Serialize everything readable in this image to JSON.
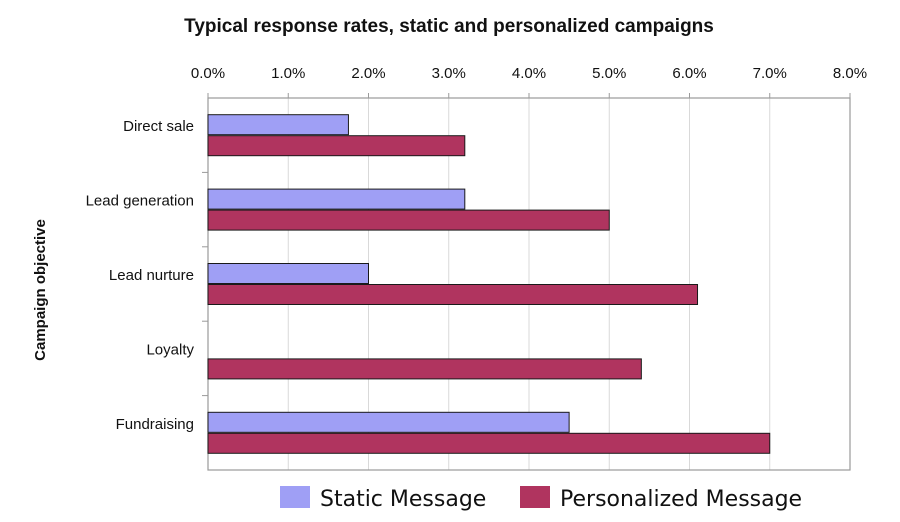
{
  "chart_data": {
    "type": "bar",
    "orientation": "horizontal",
    "title": "Typical response rates, static and personalized campaigns",
    "ylabel": "Campaign objective",
    "xlabel": "",
    "xlim": [
      0,
      8
    ],
    "x_ticks": [
      "0.0%",
      "1.0%",
      "2.0%",
      "3.0%",
      "4.0%",
      "5.0%",
      "6.0%",
      "7.0%",
      "8.0%"
    ],
    "x_axis_position": "top",
    "grid": true,
    "legend_position": "bottom",
    "categories": [
      "Direct sale",
      "Lead generation",
      "Lead nurture",
      "Loyalty",
      "Fundraising"
    ],
    "series": [
      {
        "name": "Static Message",
        "color": "#9f9ff5",
        "values": [
          1.75,
          3.2,
          2.0,
          0,
          4.5
        ]
      },
      {
        "name": "Personalized Message",
        "color": "#b0345f",
        "values": [
          3.2,
          5.0,
          6.1,
          5.4,
          7.0
        ]
      }
    ]
  }
}
